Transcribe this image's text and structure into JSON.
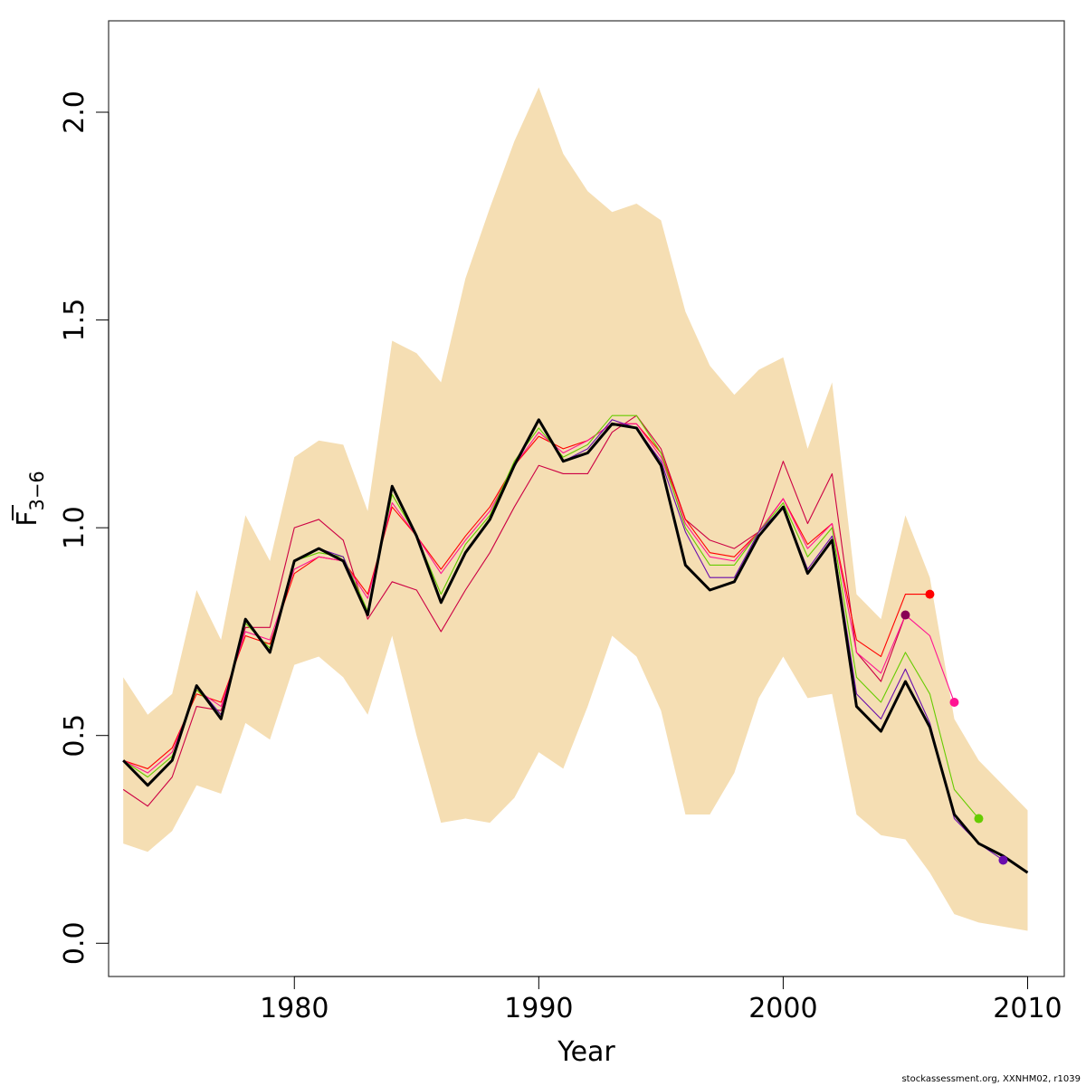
{
  "chart_data": {
    "type": "line",
    "title": "",
    "xlabel": "Year",
    "ylabel_main": "F",
    "ylabel_sub": "3−6",
    "xlim": [
      1972.4,
      2011.5
    ],
    "ylim": [
      -0.08,
      2.22
    ],
    "xticks": [
      1980,
      1990,
      2000,
      2010
    ],
    "xtick_labels": [
      "1980",
      "1990",
      "2000",
      "2010"
    ],
    "yticks": [
      0.0,
      0.5,
      1.0,
      1.5,
      2.0
    ],
    "ytick_labels": [
      "0.0",
      "0.5",
      "1.0",
      "1.5",
      "2.0"
    ],
    "grid": false,
    "band_color": "#f5deb3",
    "band": {
      "x": [
        1973,
        1974,
        1975,
        1976,
        1977,
        1978,
        1979,
        1980,
        1981,
        1982,
        1983,
        1984,
        1985,
        1986,
        1987,
        1988,
        1989,
        1990,
        1991,
        1992,
        1993,
        1994,
        1995,
        1996,
        1997,
        1998,
        1999,
        2000,
        2001,
        2002,
        2003,
        2004,
        2005,
        2006,
        2007,
        2008,
        2009,
        2010
      ],
      "upper": [
        0.64,
        0.55,
        0.6,
        0.85,
        0.73,
        1.03,
        0.92,
        1.17,
        1.21,
        1.2,
        1.04,
        1.45,
        1.42,
        1.35,
        1.6,
        1.77,
        1.93,
        2.06,
        1.9,
        1.81,
        1.76,
        1.78,
        1.74,
        1.52,
        1.39,
        1.32,
        1.38,
        1.41,
        1.19,
        1.35,
        0.84,
        0.78,
        1.03,
        0.88,
        0.54,
        0.44,
        0.38,
        0.32
      ],
      "lower": [
        0.24,
        0.22,
        0.27,
        0.38,
        0.36,
        0.53,
        0.49,
        0.67,
        0.69,
        0.64,
        0.55,
        0.74,
        0.5,
        0.29,
        0.3,
        0.29,
        0.35,
        0.46,
        0.42,
        0.57,
        0.74,
        0.69,
        0.56,
        0.31,
        0.31,
        0.41,
        0.59,
        0.69,
        0.59,
        0.6,
        0.31,
        0.26,
        0.25,
        0.17,
        0.07,
        0.05,
        0.04,
        0.03
      ]
    },
    "series": [
      {
        "color": "#cc0044",
        "x": [
          1973,
          1974,
          1975,
          1976,
          1977,
          1978,
          1979,
          1980,
          1981,
          1982,
          1983,
          1984,
          1985,
          1986,
          1987,
          1988,
          1989,
          1990,
          1991,
          1992,
          1993,
          1994,
          1995,
          1996,
          1997,
          1998,
          1999,
          2000,
          2001,
          2002,
          2003,
          2004,
          2005
        ],
        "y": [
          0.37,
          0.33,
          0.4,
          0.57,
          0.56,
          0.76,
          0.76,
          1.0,
          1.02,
          0.97,
          0.78,
          0.87,
          0.85,
          0.75,
          0.85,
          0.94,
          1.05,
          1.15,
          1.13,
          1.13,
          1.23,
          1.27,
          1.19,
          1.02,
          0.97,
          0.95,
          0.99,
          1.16,
          1.01,
          1.13,
          0.7,
          0.63,
          0.79
        ],
        "end_point": true
      },
      {
        "color": "#ff0000",
        "x": [
          1973,
          1974,
          1975,
          1976,
          1977,
          1978,
          1979,
          1980,
          1981,
          1982,
          1983,
          1984,
          1985,
          1986,
          1987,
          1988,
          1989,
          1990,
          1991,
          1992,
          1993,
          1994,
          1995,
          1996,
          1997,
          1998,
          1999,
          2000,
          2001,
          2002,
          2003,
          2004,
          2005,
          2006
        ],
        "y": [
          0.44,
          0.42,
          0.47,
          0.6,
          0.58,
          0.74,
          0.72,
          0.89,
          0.93,
          0.92,
          0.84,
          1.05,
          0.98,
          0.9,
          0.98,
          1.05,
          1.15,
          1.22,
          1.19,
          1.21,
          1.25,
          1.25,
          1.18,
          1.02,
          0.94,
          0.93,
          0.99,
          1.07,
          0.96,
          1.01,
          0.73,
          0.69,
          0.84,
          0.84
        ],
        "end_point": true
      },
      {
        "color": "#ff1493",
        "x": [
          1973,
          1974,
          1975,
          1976,
          1977,
          1978,
          1979,
          1980,
          1981,
          1982,
          1983,
          1984,
          1985,
          1986,
          1987,
          1988,
          1989,
          1990,
          1991,
          1992,
          1993,
          1994,
          1995,
          1996,
          1997,
          1998,
          1999,
          2000,
          2001,
          2002,
          2003,
          2004,
          2005,
          2006,
          2007
        ],
        "y": [
          0.44,
          0.41,
          0.46,
          0.61,
          0.57,
          0.75,
          0.73,
          0.9,
          0.93,
          0.92,
          0.83,
          1.06,
          0.98,
          0.89,
          0.97,
          1.04,
          1.15,
          1.23,
          1.18,
          1.21,
          1.25,
          1.25,
          1.17,
          1.01,
          0.93,
          0.92,
          0.99,
          1.07,
          0.95,
          1.01,
          0.7,
          0.65,
          0.79,
          0.74,
          0.58
        ],
        "end_point": true
      },
      {
        "color": "#66cc00",
        "x": [
          1973,
          1974,
          1975,
          1976,
          1977,
          1978,
          1979,
          1980,
          1981,
          1982,
          1983,
          1984,
          1985,
          1986,
          1987,
          1988,
          1989,
          1990,
          1991,
          1992,
          1993,
          1994,
          1995,
          1996,
          1997,
          1998,
          1999,
          2000,
          2001,
          2002,
          2003,
          2004,
          2005,
          2006,
          2007,
          2008
        ],
        "y": [
          0.44,
          0.4,
          0.45,
          0.61,
          0.55,
          0.77,
          0.71,
          0.92,
          0.94,
          0.93,
          0.8,
          1.08,
          0.98,
          0.84,
          0.96,
          1.03,
          1.16,
          1.24,
          1.17,
          1.2,
          1.27,
          1.27,
          1.18,
          1.0,
          0.91,
          0.91,
          0.99,
          1.06,
          0.93,
          1.0,
          0.64,
          0.58,
          0.7,
          0.6,
          0.37,
          0.3
        ],
        "end_point": true
      },
      {
        "color": "#6a0dad",
        "x": [
          1973,
          1974,
          1975,
          1976,
          1977,
          1978,
          1979,
          1980,
          1981,
          1982,
          1983,
          1984,
          1985,
          1986,
          1987,
          1988,
          1989,
          1990,
          1991,
          1992,
          1993,
          1994,
          1995,
          1996,
          1997,
          1998,
          1999,
          2000,
          2001,
          2002,
          2003,
          2004,
          2005,
          2006,
          2007,
          2008,
          2009
        ],
        "y": [
          0.44,
          0.38,
          0.44,
          0.62,
          0.55,
          0.78,
          0.7,
          0.92,
          0.95,
          0.93,
          0.79,
          1.1,
          0.98,
          0.82,
          0.94,
          1.02,
          1.15,
          1.26,
          1.16,
          1.19,
          1.26,
          1.24,
          1.16,
          0.99,
          0.88,
          0.88,
          0.99,
          1.05,
          0.9,
          0.98,
          0.6,
          0.54,
          0.66,
          0.53,
          0.3,
          0.24,
          0.2
        ],
        "end_point": true
      },
      {
        "color": "#000000",
        "width": 3,
        "x": [
          1973,
          1974,
          1975,
          1976,
          1977,
          1978,
          1979,
          1980,
          1981,
          1982,
          1983,
          1984,
          1985,
          1986,
          1987,
          1988,
          1989,
          1990,
          1991,
          1992,
          1993,
          1994,
          1995,
          1996,
          1997,
          1998,
          1999,
          2000,
          2001,
          2002,
          2003,
          2004,
          2005,
          2006,
          2007,
          2008,
          2009,
          2010
        ],
        "y": [
          0.44,
          0.38,
          0.44,
          0.62,
          0.54,
          0.78,
          0.7,
          0.92,
          0.95,
          0.92,
          0.79,
          1.1,
          0.98,
          0.82,
          0.94,
          1.02,
          1.15,
          1.26,
          1.16,
          1.18,
          1.25,
          1.24,
          1.15,
          0.91,
          0.85,
          0.87,
          0.98,
          1.05,
          0.89,
          0.97,
          0.57,
          0.51,
          0.63,
          0.52,
          0.31,
          0.24,
          0.21,
          0.17
        ],
        "end_point": false
      }
    ],
    "endpoint_colors": [
      "#880055",
      "#ff0000",
      "#ff1493",
      "#66cc00",
      "#6a0dad"
    ]
  },
  "footer": "stockassessment.org, XXNHM02, r1039"
}
